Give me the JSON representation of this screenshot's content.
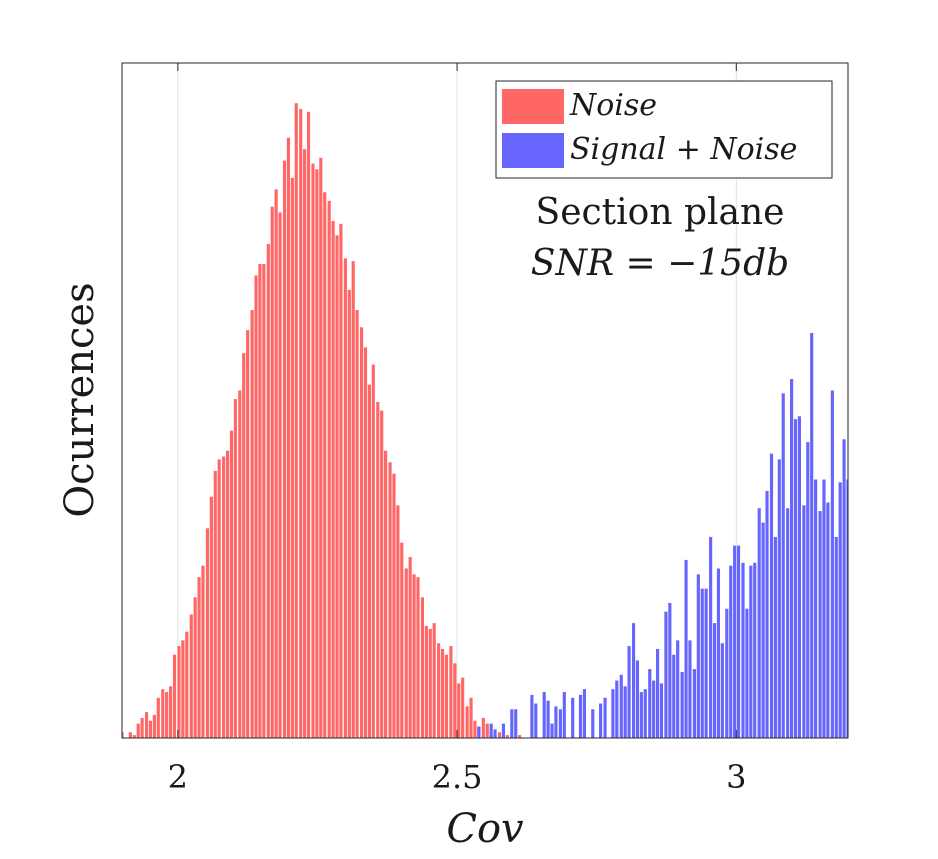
{
  "chart_data": {
    "type": "bar",
    "xlabel": "Cov",
    "ylabel": "Ocurrences",
    "xlim": [
      1.9,
      3.2
    ],
    "ylim": [
      0,
      235
    ],
    "xticks": [
      2,
      2.5,
      3
    ],
    "xtick_labels": [
      "2",
      "2.5",
      "3"
    ],
    "yticks_shown": false,
    "grid": "vertical",
    "legend_placement": "top-right",
    "annotation_lines": [
      "Section plane",
      "SNR = −15db"
    ],
    "colors": {
      "Noise": "#ff6666",
      "Signal + Noise": "#6666ff"
    },
    "bin_width": 0.00725,
    "series": [
      {
        "name": "Noise",
        "x": [
          1.9,
          1.907,
          1.915,
          1.922,
          1.929,
          1.936,
          1.944,
          1.951,
          1.958,
          1.965,
          1.973,
          1.98,
          1.987,
          1.994,
          2.002,
          2.009,
          2.016,
          2.024,
          2.031,
          2.038,
          2.045,
          2.053,
          2.06,
          2.067,
          2.074,
          2.082,
          2.089,
          2.096,
          2.103,
          2.111,
          2.118,
          2.125,
          2.133,
          2.14,
          2.147,
          2.154,
          2.162,
          2.169,
          2.176,
          2.183,
          2.191,
          2.198,
          2.205,
          2.212,
          2.22,
          2.227,
          2.234,
          2.242,
          2.249,
          2.256,
          2.263,
          2.271,
          2.278,
          2.285,
          2.292,
          2.3,
          2.307,
          2.314,
          2.321,
          2.329,
          2.336,
          2.343,
          2.35,
          2.358,
          2.365,
          2.372,
          2.38,
          2.387,
          2.394,
          2.401,
          2.409,
          2.416,
          2.423,
          2.43,
          2.438,
          2.445,
          2.452,
          2.459,
          2.467,
          2.474,
          2.481,
          2.489,
          2.496,
          2.503,
          2.51,
          2.518,
          2.525,
          2.532,
          2.539,
          2.547,
          2.554,
          2.561,
          2.568,
          2.576,
          2.583,
          2.59,
          2.598,
          2.605,
          2.612,
          2.619,
          2.627
        ],
        "values": [
          2,
          0,
          2,
          1,
          5,
          7,
          9,
          6,
          8,
          14,
          17,
          16,
          18,
          29,
          32,
          34,
          37,
          43,
          49,
          56,
          60,
          73,
          84,
          93,
          97,
          98,
          100,
          107,
          118,
          121,
          134,
          142,
          149,
          161,
          165,
          165,
          172,
          185,
          191,
          183,
          201,
          209,
          195,
          221,
          219,
          205,
          218,
          200,
          198,
          202,
          190,
          187,
          180,
          175,
          179,
          167,
          156,
          166,
          149,
          143,
          136,
          123,
          130,
          117,
          114,
          100,
          96,
          92,
          81,
          68,
          59,
          63,
          57,
          56,
          49,
          39,
          38,
          40,
          33,
          31,
          29,
          32,
          26,
          19,
          21,
          11,
          14,
          6,
          4,
          7,
          5,
          1,
          1,
          2,
          1,
          1,
          0,
          0,
          1,
          0,
          0
        ]
      },
      {
        "name": "Signal + Noise",
        "x": [
          2.539,
          2.547,
          2.554,
          2.561,
          2.568,
          2.576,
          2.583,
          2.59,
          2.598,
          2.605,
          2.612,
          2.619,
          2.627,
          2.634,
          2.641,
          2.648,
          2.656,
          2.663,
          2.67,
          2.677,
          2.685,
          2.692,
          2.699,
          2.707,
          2.714,
          2.721,
          2.728,
          2.736,
          2.743,
          2.75,
          2.757,
          2.765,
          2.772,
          2.779,
          2.786,
          2.794,
          2.801,
          2.808,
          2.816,
          2.823,
          2.83,
          2.837,
          2.845,
          2.852,
          2.859,
          2.866,
          2.874,
          2.881,
          2.888,
          2.895,
          2.903,
          2.91,
          2.917,
          2.925,
          2.932,
          2.939,
          2.946,
          2.954,
          2.961,
          2.968,
          2.975,
          2.983,
          2.99,
          2.997,
          3.004,
          3.012,
          3.019,
          3.026,
          3.033,
          3.041,
          3.048,
          3.055,
          3.063,
          3.07,
          3.077,
          3.084,
          3.092,
          3.099,
          3.106,
          3.113,
          3.121,
          3.128,
          3.135,
          3.142,
          3.15,
          3.157,
          3.164,
          3.172,
          3.179,
          3.186,
          3.193,
          3.2
        ],
        "values": [
          1,
          0,
          0,
          0,
          0,
          0,
          0,
          0,
          0,
          0,
          0,
          0,
          0,
          0,
          0,
          0,
          0,
          0,
          0,
          0,
          0,
          0,
          0,
          0,
          0,
          0,
          0,
          0,
          0,
          0,
          0,
          0,
          0,
          0,
          0,
          0,
          0,
          0,
          0,
          0,
          0,
          0,
          0,
          0,
          0,
          0,
          0,
          0,
          0,
          0,
          0,
          0,
          0,
          0,
          0,
          0,
          0,
          0,
          0,
          0,
          0,
          0,
          0,
          0,
          0,
          0,
          0,
          0,
          0,
          0,
          0,
          0,
          0,
          0,
          0,
          0,
          0,
          0,
          0,
          0,
          0,
          0,
          0,
          0,
          0,
          0,
          0,
          0,
          0,
          0,
          0,
          0
        ],
        "extra_bars": {
          "x": [
            2.539,
            2.561,
            2.568,
            2.583,
            2.598,
            2.605,
            2.634,
            2.641,
            2.656,
            2.663,
            2.67,
            2.677,
            2.685,
            2.692,
            2.707,
            2.721,
            2.728,
            2.743,
            2.757,
            2.765,
            2.779,
            2.786,
            2.794,
            2.801,
            2.808,
            2.816,
            2.823,
            2.83,
            2.837,
            2.845,
            2.852,
            2.859,
            2.866,
            2.874,
            2.881,
            2.888,
            2.895,
            2.903,
            2.91,
            2.917,
            2.925,
            2.932,
            2.939,
            2.946,
            2.954,
            2.961,
            2.968,
            2.975,
            2.983,
            2.99,
            2.997,
            3.004,
            3.012,
            3.019,
            3.026,
            3.033,
            3.041,
            3.048,
            3.055,
            3.063,
            3.07,
            3.077,
            3.084,
            3.092,
            3.099,
            3.106,
            3.113,
            3.121,
            3.128,
            3.135,
            3.142,
            3.15,
            3.157,
            3.164,
            3.172,
            3.179,
            3.186,
            3.193,
            3.2
          ],
          "values": [
            4,
            5,
            3,
            5,
            10,
            10,
            15,
            12,
            16,
            13,
            5,
            11,
            10,
            16,
            14,
            15,
            17,
            10,
            12,
            14,
            17,
            20,
            22,
            18,
            32,
            40,
            27,
            16,
            17,
            24,
            20,
            31,
            19,
            44,
            47,
            29,
            34,
            23,
            62,
            34,
            24,
            57,
            52,
            52,
            70,
            40,
            59,
            33,
            45,
            60,
            67,
            67,
            61,
            45,
            60,
            61,
            80,
            75,
            86,
            99,
            70,
            97,
            120,
            80,
            125,
            111,
            112,
            81,
            103,
            141,
            90,
            79,
            90,
            82,
            121,
            70,
            89,
            104,
            90
          ]
        }
      }
    ]
  },
  "legend": {
    "noise_label": "Noise",
    "signal_label": "Signal + Noise"
  },
  "annotation": {
    "line1": "Section plane",
    "line2": "SNR = −15db"
  },
  "axes": {
    "xlabel": "Cov",
    "ylabel": "Ocurrences",
    "xtick_labels": [
      "2",
      "2.5",
      "3"
    ]
  }
}
